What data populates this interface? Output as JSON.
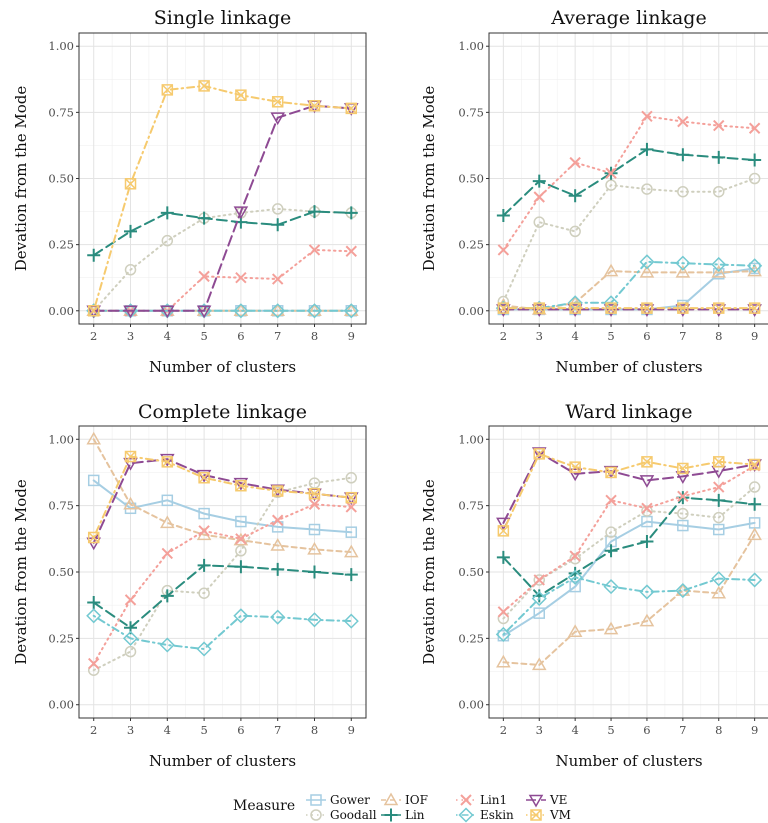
{
  "colors": {
    "Gower": "#a6cee3",
    "Goodall": "#cfcfbe",
    "IOF": "#e5c39e",
    "Lin": "#2a8c7e",
    "Lin1": "#f4a09a",
    "Eskin": "#73c9d1",
    "VE": "#8e4a93",
    "VM": "#f6ca6e"
  },
  "legend": {
    "title": "Measure",
    "items": [
      {
        "name": "Gower",
        "marker": "square",
        "dash": "solid"
      },
      {
        "name": "Goodall",
        "marker": "circle",
        "dash": "dotted"
      },
      {
        "name": "IOF",
        "marker": "triangle",
        "dash": "dashed"
      },
      {
        "name": "Lin",
        "marker": "plus",
        "dash": "longdash"
      },
      {
        "name": "Lin1",
        "marker": "cross",
        "dash": "dotted"
      },
      {
        "name": "Eskin",
        "marker": "diamond",
        "dash": "dotdash"
      },
      {
        "name": "VE",
        "marker": "triangle-down",
        "dash": "longdash"
      },
      {
        "name": "VM",
        "marker": "boxcross",
        "dash": "dotdash"
      }
    ]
  },
  "chart_data": [
    {
      "type": "line",
      "title": "Single linkage",
      "xlabel": "Number of clusters",
      "ylabel": "Devation from the Mode",
      "x": [
        2,
        3,
        4,
        5,
        6,
        7,
        8,
        9
      ],
      "ylim": [
        0,
        1
      ],
      "yticks": [
        "0.00",
        "0.25",
        "0.50",
        "0.75",
        "1.00"
      ],
      "series": [
        {
          "name": "Gower",
          "values": [
            0,
            0,
            0,
            0,
            0,
            0,
            0,
            0
          ]
        },
        {
          "name": "Goodall",
          "values": [
            0,
            0.155,
            0.265,
            0.35,
            0.37,
            0.385,
            0.375,
            0.37
          ]
        },
        {
          "name": "IOF",
          "values": [
            0,
            0,
            0,
            0,
            0,
            0,
            0,
            0
          ]
        },
        {
          "name": "Lin",
          "values": [
            0.21,
            0.3,
            0.37,
            0.35,
            0.335,
            0.325,
            0.375,
            0.37
          ]
        },
        {
          "name": "Lin1",
          "values": [
            0,
            0,
            0,
            0.13,
            0.125,
            0.12,
            0.23,
            0.225
          ]
        },
        {
          "name": "Eskin",
          "values": [
            0,
            0,
            0,
            0,
            0,
            0,
            0,
            0
          ]
        },
        {
          "name": "VE",
          "values": [
            0,
            0,
            0,
            0,
            0.375,
            0.73,
            0.775,
            0.765
          ]
        },
        {
          "name": "VM",
          "values": [
            0,
            0.48,
            0.835,
            0.85,
            0.815,
            0.79,
            0.775,
            0.765
          ]
        }
      ]
    },
    {
      "type": "line",
      "title": "Average linkage",
      "xlabel": "Number of clusters",
      "ylabel": "Devation from the Mode",
      "x": [
        2,
        3,
        4,
        5,
        6,
        7,
        8,
        9
      ],
      "ylim": [
        0,
        1
      ],
      "yticks": [
        "0.00",
        "0.25",
        "0.50",
        "0.75",
        "1.00"
      ],
      "series": [
        {
          "name": "Gower",
          "values": [
            0.005,
            0.005,
            0.005,
            0.005,
            0.005,
            0.02,
            0.14,
            0.16
          ]
        },
        {
          "name": "Goodall",
          "values": [
            0.035,
            0.335,
            0.3,
            0.475,
            0.46,
            0.45,
            0.45,
            0.5
          ]
        },
        {
          "name": "IOF",
          "values": [
            0.02,
            0.005,
            0.03,
            0.15,
            0.145,
            0.145,
            0.145,
            0.15
          ]
        },
        {
          "name": "Lin",
          "values": [
            0.36,
            0.49,
            0.435,
            0.52,
            0.61,
            0.59,
            0.58,
            0.57
          ]
        },
        {
          "name": "Lin1",
          "values": [
            0.23,
            0.43,
            0.56,
            0.52,
            0.735,
            0.715,
            0.7,
            0.69
          ]
        },
        {
          "name": "Eskin",
          "values": [
            0.01,
            0.01,
            0.03,
            0.03,
            0.185,
            0.18,
            0.175,
            0.17
          ]
        },
        {
          "name": "VE",
          "values": [
            0.005,
            0.005,
            0.005,
            0.005,
            0.005,
            0.005,
            0.005,
            0.005
          ]
        },
        {
          "name": "VM",
          "values": [
            0.01,
            0.01,
            0.01,
            0.01,
            0.01,
            0.01,
            0.01,
            0.01
          ]
        }
      ]
    },
    {
      "type": "line",
      "title": "Complete linkage",
      "xlabel": "Number of clusters",
      "ylabel": "Devation from the Mode",
      "x": [
        2,
        3,
        4,
        5,
        6,
        7,
        8,
        9
      ],
      "ylim": [
        0,
        1
      ],
      "yticks": [
        "0.00",
        "0.25",
        "0.50",
        "0.75",
        "1.00"
      ],
      "series": [
        {
          "name": "Gower",
          "values": [
            0.845,
            0.74,
            0.77,
            0.72,
            0.69,
            0.67,
            0.66,
            0.65
          ]
        },
        {
          "name": "Goodall",
          "values": [
            0.13,
            0.2,
            0.43,
            0.42,
            0.58,
            0.8,
            0.835,
            0.855
          ]
        },
        {
          "name": "IOF",
          "values": [
            1.0,
            0.755,
            0.685,
            0.64,
            0.62,
            0.6,
            0.585,
            0.575
          ]
        },
        {
          "name": "Lin",
          "values": [
            0.385,
            0.29,
            0.41,
            0.525,
            0.52,
            0.51,
            0.5,
            0.49
          ]
        },
        {
          "name": "Lin1",
          "values": [
            0.155,
            0.395,
            0.57,
            0.655,
            0.625,
            0.695,
            0.755,
            0.745
          ]
        },
        {
          "name": "Eskin",
          "values": [
            0.335,
            0.25,
            0.225,
            0.21,
            0.335,
            0.33,
            0.32,
            0.315
          ]
        },
        {
          "name": "VE",
          "values": [
            0.61,
            0.91,
            0.925,
            0.865,
            0.835,
            0.81,
            0.795,
            0.78
          ]
        },
        {
          "name": "VM",
          "values": [
            0.63,
            0.935,
            0.915,
            0.855,
            0.825,
            0.805,
            0.795,
            0.78
          ]
        }
      ]
    },
    {
      "type": "line",
      "title": "Ward linkage",
      "xlabel": "Number of clusters",
      "ylabel": "Devation from the Mode",
      "x": [
        2,
        3,
        4,
        5,
        6,
        7,
        8,
        9
      ],
      "ylim": [
        0,
        1
      ],
      "yticks": [
        "0.00",
        "0.25",
        "0.50",
        "0.75",
        "1.00"
      ],
      "series": [
        {
          "name": "Gower",
          "values": [
            0.26,
            0.345,
            0.445,
            0.615,
            0.69,
            0.675,
            0.66,
            0.685
          ]
        },
        {
          "name": "Goodall",
          "values": [
            0.325,
            0.47,
            0.55,
            0.65,
            0.73,
            0.72,
            0.705,
            0.82
          ]
        },
        {
          "name": "IOF",
          "values": [
            0.16,
            0.15,
            0.275,
            0.285,
            0.315,
            0.43,
            0.42,
            0.64
          ]
        },
        {
          "name": "Lin",
          "values": [
            0.555,
            0.41,
            0.495,
            0.58,
            0.615,
            0.78,
            0.77,
            0.755
          ]
        },
        {
          "name": "Lin1",
          "values": [
            0.35,
            0.47,
            0.56,
            0.77,
            0.74,
            0.785,
            0.82,
            0.9
          ]
        },
        {
          "name": "Eskin",
          "values": [
            0.265,
            0.4,
            0.48,
            0.445,
            0.425,
            0.43,
            0.475,
            0.47
          ]
        },
        {
          "name": "VE",
          "values": [
            0.685,
            0.95,
            0.87,
            0.88,
            0.845,
            0.86,
            0.88,
            0.905
          ]
        },
        {
          "name": "VM",
          "values": [
            0.655,
            0.945,
            0.895,
            0.875,
            0.915,
            0.89,
            0.915,
            0.905
          ]
        }
      ]
    }
  ]
}
